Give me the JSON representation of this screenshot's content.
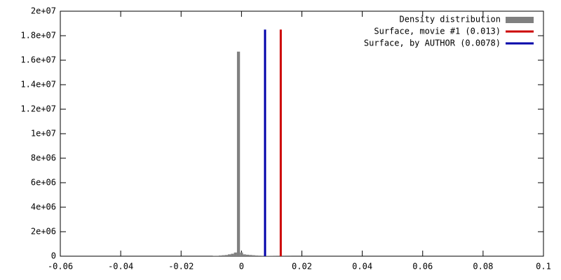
{
  "chart_data": {
    "type": "histogram",
    "series": [
      {
        "name": "Density distribution",
        "color": "#808080",
        "bins": [
          -0.0095,
          -0.0085,
          -0.0075,
          -0.0065,
          -0.0055,
          -0.0045,
          -0.0035,
          -0.0025,
          -0.0015,
          -0.0005,
          0.0005,
          0.0015,
          0.0025,
          0.0035,
          0.0045,
          0.0055,
          0.0065,
          0.0075,
          0.0085,
          0.0095,
          0.0105,
          0.0115,
          0.0125,
          0.0135,
          0.0145,
          0.0155,
          0.0165
        ],
        "values": [
          20000,
          40000,
          60000,
          80000,
          100000,
          150000,
          200000,
          300000,
          16700000,
          300000,
          150000,
          120000,
          100000,
          80000,
          60000,
          50000,
          40000,
          30000,
          25000,
          20000,
          15000,
          12000,
          10000,
          8000,
          5000,
          3000
        ]
      }
    ],
    "vlines": [
      {
        "name": "Surface, movie #1 (0.013)",
        "color": "#cc0000",
        "x": 0.013,
        "top": 18500000
      },
      {
        "name": "Surface, by AUTHOR (0.0078)",
        "color": "#0000aa",
        "x": 0.0078,
        "top": 18500000
      }
    ],
    "xlim": [
      -0.06,
      0.1
    ],
    "xticks": [
      -0.06,
      -0.04,
      -0.02,
      0,
      0.02,
      0.04,
      0.06,
      0.08,
      0.1
    ],
    "ylim": [
      0,
      20000000
    ],
    "yticks": [
      0,
      {
        "value": 2000000,
        "label": "2e+06"
      },
      {
        "value": 4000000,
        "label": "4e+06"
      },
      {
        "value": 6000000,
        "label": "6e+06"
      },
      {
        "value": 8000000,
        "label": "8e+06"
      },
      {
        "value": 10000000,
        "label": "1e+07"
      },
      {
        "value": 12000000,
        "label": "1.2e+07"
      },
      {
        "value": 14000000,
        "label": "1.4e+07"
      },
      {
        "value": 16000000,
        "label": "1.6e+07"
      },
      {
        "value": 18000000,
        "label": "1.8e+07"
      },
      {
        "value": 20000000,
        "label": "2e+07"
      }
    ],
    "legend": "top-right"
  }
}
